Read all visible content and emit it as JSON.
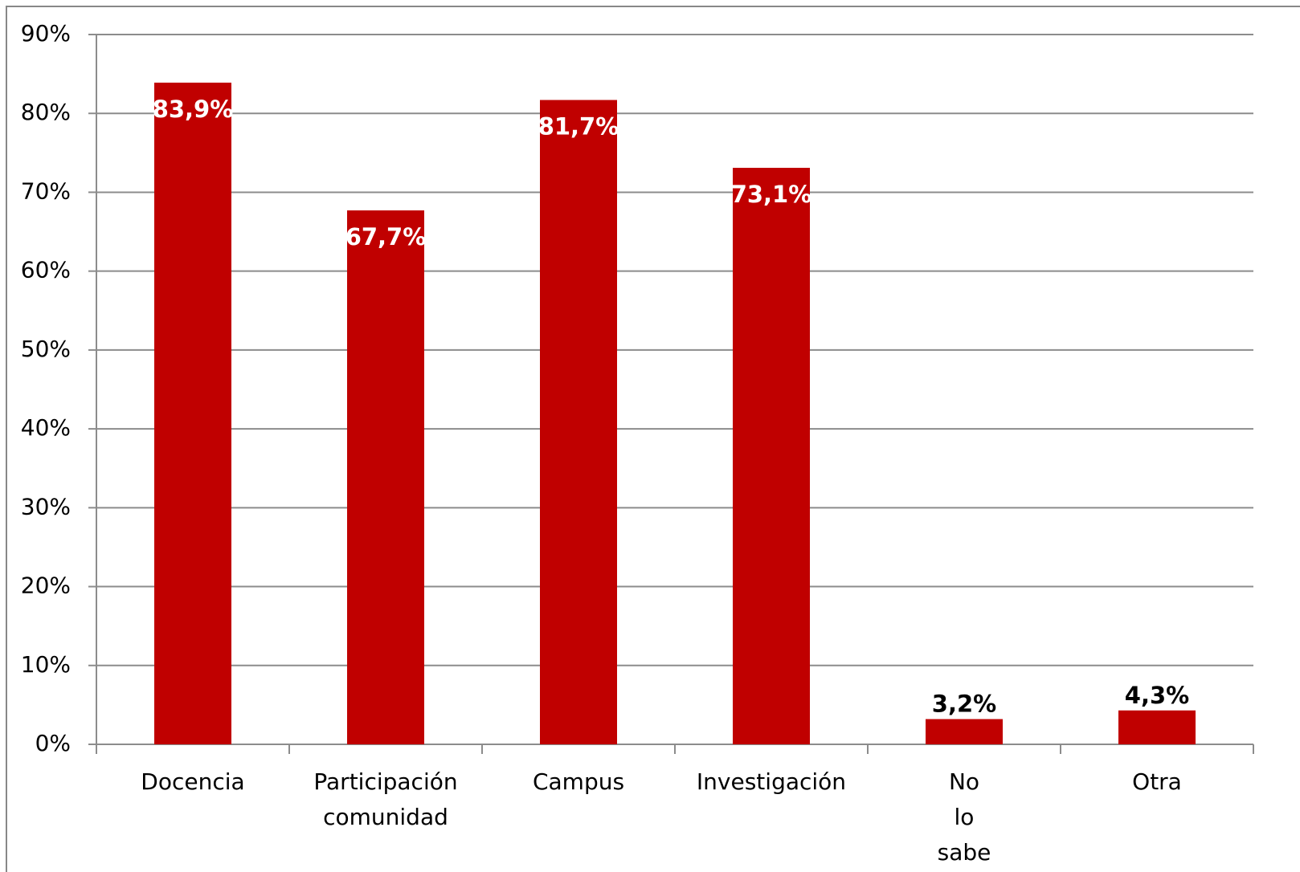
{
  "chart_data": {
    "type": "bar",
    "categories": [
      "Docencia",
      "Participación comunidad",
      "Campus",
      "Investigación",
      "No lo sabe",
      "Otra"
    ],
    "values": [
      83.9,
      67.7,
      81.7,
      73.1,
      3.2,
      4.3
    ],
    "value_labels": [
      "83,9%",
      "67,7%",
      "81,7%",
      "73,1%",
      "3,2%",
      "4,3%"
    ],
    "color": "#c00000",
    "ylim": [
      0,
      90
    ],
    "yticks": [
      {
        "value": 0,
        "label": "0%"
      },
      {
        "value": 10,
        "label": "10%"
      },
      {
        "value": 20,
        "label": "20%"
      },
      {
        "value": 30,
        "label": "30%"
      },
      {
        "value": 40,
        "label": "40%"
      },
      {
        "value": 50,
        "label": "50%"
      },
      {
        "value": 60,
        "label": "60%"
      },
      {
        "value": 70,
        "label": "70%"
      },
      {
        "value": 80,
        "label": "80%"
      },
      {
        "value": 90,
        "label": "90%"
      }
    ],
    "grid": true
  }
}
